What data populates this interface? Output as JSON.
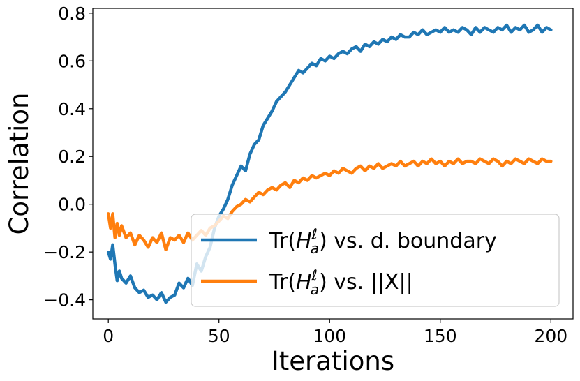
{
  "chart_data": {
    "type": "line",
    "xlabel": "Iterations",
    "ylabel": "Correlation",
    "xlim": [
      -7,
      210
    ],
    "ylim": [
      -0.48,
      0.82
    ],
    "xticks": [
      0,
      50,
      100,
      150,
      200
    ],
    "xtick_labels": [
      "0",
      "50",
      "100",
      "150",
      "200"
    ],
    "yticks": [
      -0.4,
      -0.2,
      0.0,
      0.2,
      0.4,
      0.6,
      0.8
    ],
    "ytick_labels": [
      "−0.4",
      "−0.2",
      "0.0",
      "0.2",
      "0.4",
      "0.6",
      "0.8"
    ],
    "legend_position": "lower-right",
    "grid": false,
    "series": [
      {
        "name": "Tr(H_a^ℓ) vs. d. boundary",
        "legend_pre": "Tr(",
        "legend_base": "H",
        "legend_sup": "ℓ",
        "legend_sub": "a",
        "legend_post": ") vs. d. boundary",
        "color": "#1f77b4",
        "x": [
          0,
          1,
          2,
          3,
          4,
          5,
          6,
          8,
          10,
          12,
          14,
          16,
          18,
          20,
          22,
          24,
          26,
          28,
          30,
          32,
          34,
          36,
          38,
          40,
          42,
          44,
          46,
          48,
          50,
          52,
          54,
          56,
          58,
          60,
          62,
          64,
          66,
          68,
          70,
          72,
          74,
          76,
          78,
          80,
          82,
          84,
          86,
          88,
          90,
          92,
          94,
          96,
          98,
          100,
          102,
          104,
          106,
          108,
          110,
          112,
          114,
          116,
          118,
          120,
          122,
          124,
          126,
          128,
          130,
          132,
          134,
          136,
          138,
          140,
          142,
          144,
          146,
          148,
          150,
          152,
          154,
          156,
          158,
          160,
          162,
          164,
          166,
          168,
          170,
          172,
          174,
          176,
          178,
          180,
          182,
          184,
          186,
          188,
          190,
          192,
          194,
          196,
          198,
          200
        ],
        "values": [
          -0.2,
          -0.23,
          -0.17,
          -0.25,
          -0.32,
          -0.28,
          -0.31,
          -0.33,
          -0.3,
          -0.35,
          -0.37,
          -0.36,
          -0.39,
          -0.38,
          -0.4,
          -0.37,
          -0.41,
          -0.39,
          -0.38,
          -0.33,
          -0.35,
          -0.31,
          -0.34,
          -0.25,
          -0.28,
          -0.22,
          -0.18,
          -0.1,
          -0.05,
          -0.02,
          0.02,
          0.08,
          0.12,
          0.16,
          0.14,
          0.21,
          0.25,
          0.27,
          0.33,
          0.36,
          0.39,
          0.43,
          0.45,
          0.47,
          0.5,
          0.53,
          0.56,
          0.55,
          0.57,
          0.59,
          0.58,
          0.61,
          0.6,
          0.62,
          0.61,
          0.63,
          0.64,
          0.63,
          0.65,
          0.66,
          0.64,
          0.67,
          0.66,
          0.68,
          0.67,
          0.69,
          0.68,
          0.7,
          0.69,
          0.71,
          0.7,
          0.7,
          0.72,
          0.71,
          0.73,
          0.71,
          0.72,
          0.73,
          0.72,
          0.74,
          0.72,
          0.73,
          0.72,
          0.74,
          0.73,
          0.71,
          0.74,
          0.72,
          0.74,
          0.73,
          0.72,
          0.74,
          0.73,
          0.75,
          0.72,
          0.74,
          0.73,
          0.75,
          0.72,
          0.73,
          0.75,
          0.72,
          0.74,
          0.73
        ]
      },
      {
        "name": "Tr(H_a^ℓ) vs. ||X||",
        "legend_pre": "Tr(",
        "legend_base": "H",
        "legend_sup": "ℓ",
        "legend_sub": "a",
        "legend_post": ") vs.  ||X||",
        "color": "#ff7f0e",
        "x": [
          0,
          1,
          2,
          3,
          4,
          5,
          6,
          8,
          10,
          12,
          14,
          16,
          18,
          20,
          22,
          24,
          26,
          28,
          30,
          32,
          34,
          36,
          38,
          40,
          42,
          44,
          46,
          48,
          50,
          52,
          54,
          56,
          58,
          60,
          62,
          64,
          66,
          68,
          70,
          72,
          74,
          76,
          78,
          80,
          82,
          84,
          86,
          88,
          90,
          92,
          94,
          96,
          98,
          100,
          102,
          104,
          106,
          108,
          110,
          112,
          114,
          116,
          118,
          120,
          122,
          124,
          126,
          128,
          130,
          132,
          134,
          136,
          138,
          140,
          142,
          144,
          146,
          148,
          150,
          152,
          154,
          156,
          158,
          160,
          162,
          164,
          166,
          168,
          170,
          172,
          174,
          176,
          178,
          180,
          182,
          184,
          186,
          188,
          190,
          192,
          194,
          196,
          198,
          200
        ],
        "values": [
          -0.04,
          -0.1,
          -0.04,
          -0.14,
          -0.08,
          -0.13,
          -0.09,
          -0.14,
          -0.12,
          -0.17,
          -0.13,
          -0.15,
          -0.18,
          -0.14,
          -0.16,
          -0.12,
          -0.19,
          -0.14,
          -0.15,
          -0.13,
          -0.16,
          -0.12,
          -0.15,
          -0.13,
          -0.11,
          -0.13,
          -0.1,
          -0.09,
          -0.07,
          -0.05,
          -0.06,
          -0.03,
          -0.01,
          0.0,
          0.02,
          0.01,
          0.03,
          0.05,
          0.04,
          0.06,
          0.07,
          0.06,
          0.08,
          0.09,
          0.07,
          0.1,
          0.09,
          0.11,
          0.1,
          0.12,
          0.11,
          0.12,
          0.13,
          0.12,
          0.14,
          0.13,
          0.15,
          0.14,
          0.13,
          0.15,
          0.16,
          0.14,
          0.16,
          0.15,
          0.17,
          0.15,
          0.16,
          0.17,
          0.16,
          0.18,
          0.16,
          0.17,
          0.18,
          0.16,
          0.18,
          0.17,
          0.19,
          0.17,
          0.18,
          0.16,
          0.18,
          0.17,
          0.19,
          0.17,
          0.18,
          0.18,
          0.17,
          0.19,
          0.18,
          0.17,
          0.19,
          0.18,
          0.16,
          0.18,
          0.17,
          0.19,
          0.18,
          0.17,
          0.19,
          0.18,
          0.17,
          0.19,
          0.18,
          0.18
        ]
      }
    ]
  }
}
